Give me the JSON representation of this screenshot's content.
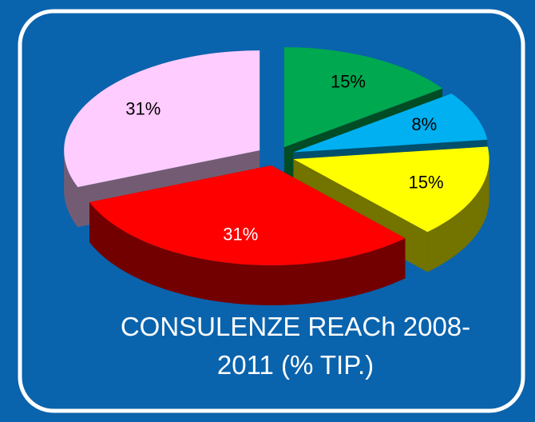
{
  "chart_data": {
    "type": "pie3d",
    "title": "CONSULENZE REACh 2008-2011 (% TIP.)",
    "values": [
      15,
      8,
      15,
      31,
      31
    ],
    "value_labels": [
      "15%",
      "8%",
      "15%",
      "31%",
      "31%"
    ],
    "colors": [
      "#00a84f",
      "#00b0f0",
      "#ffff00",
      "#ff0000",
      "#ffccff"
    ]
  }
}
